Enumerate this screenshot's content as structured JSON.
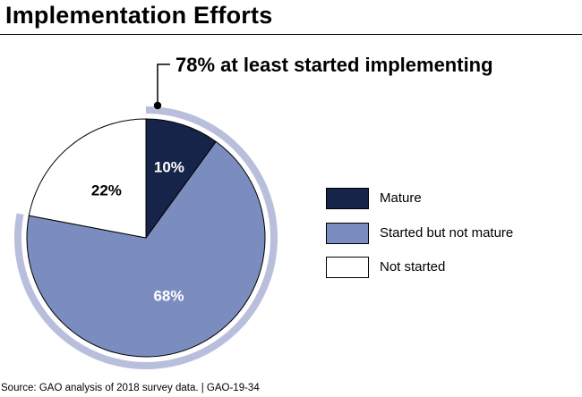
{
  "header": {
    "title": "Implementation Efforts"
  },
  "callout": {
    "text": "78% at least started implementing"
  },
  "source": {
    "text": "Source: GAO analysis of 2018 survey data.  |  GAO-19-34"
  },
  "colors": {
    "mature": "#17244a",
    "started": "#7b8cbe",
    "not_started": "#ffffff",
    "ring": "#b9bedc",
    "outline": "#000000"
  },
  "chart_data": {
    "type": "pie",
    "slices": [
      {
        "label": "Mature",
        "value": 10,
        "display": "10%",
        "color": "#17244a",
        "text_color": "#ffffff"
      },
      {
        "label": "Started but not mature",
        "value": 68,
        "display": "68%",
        "color": "#7b8cbe",
        "text_color": "#ffffff"
      },
      {
        "label": "Not started",
        "value": 22,
        "display": "22%",
        "color": "#ffffff",
        "text_color": "#000000"
      }
    ],
    "annotation": "78% at least started implementing",
    "legend_position": "right"
  }
}
